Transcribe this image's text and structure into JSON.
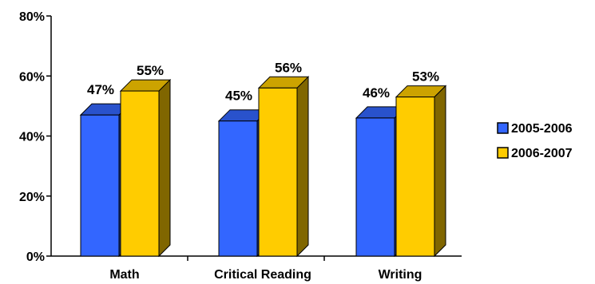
{
  "chart_data": {
    "type": "bar",
    "categories": [
      "Math",
      "Critical Reading",
      "Writing"
    ],
    "series": [
      {
        "name": "2005-2006",
        "values": [
          47,
          45,
          46
        ],
        "labels": [
          "47%",
          "45%",
          "46%"
        ],
        "color": "#3366FF"
      },
      {
        "name": "2006-2007",
        "values": [
          55,
          56,
          53
        ],
        "labels": [
          "55%",
          "56%",
          "53%"
        ],
        "color": "#FFCC00"
      }
    ],
    "ylim": [
      0,
      80
    ],
    "yticks": [
      0,
      20,
      40,
      60,
      80
    ],
    "ytick_labels": [
      "0%",
      "20%",
      "40%",
      "60%",
      "80%"
    ],
    "bar_style": "3d",
    "legend_position": "right",
    "grid": false,
    "title": "",
    "xlabel": "",
    "ylabel": ""
  }
}
